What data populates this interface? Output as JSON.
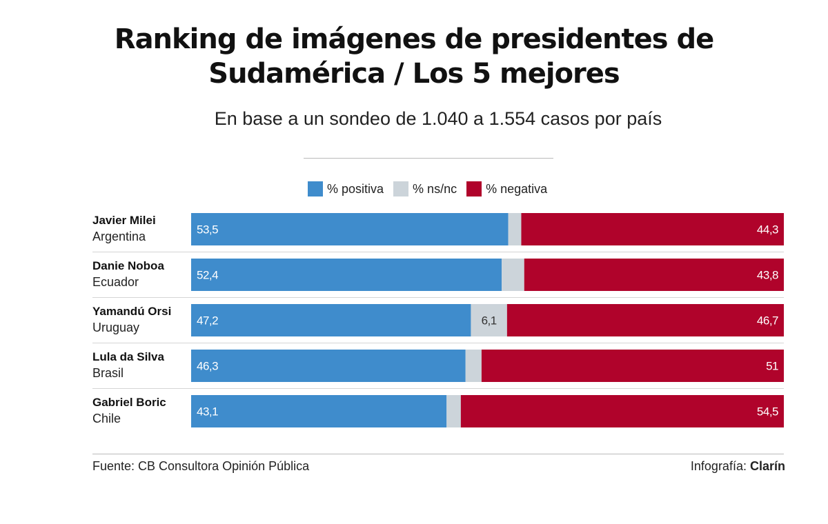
{
  "header": {
    "title_line1": "Ranking de imágenes de presidentes de",
    "title_line2": "Sudamérica / Los 5 mejores",
    "subtitle": "En base a un sondeo de 1.040 a 1.554 casos por país"
  },
  "legend": [
    {
      "label": "% positiva",
      "color": "#3f8ccc"
    },
    {
      "label": "% ns/nc",
      "color": "#ccd4da"
    },
    {
      "label": "% negativa",
      "color": "#b0032b"
    }
  ],
  "chart_data": {
    "type": "bar",
    "orientation": "horizontal",
    "stacked": true,
    "title": "Ranking de imágenes de presidentes de Sudamérica / Los 5 mejores",
    "subtitle": "En base a un sondeo de 1.040 a 1.554 casos por país",
    "categories": [
      {
        "name": "Javier Milei",
        "country": "Argentina"
      },
      {
        "name": "Danie Noboa",
        "country": "Ecuador"
      },
      {
        "name": "Yamandú Orsi",
        "country": "Uruguay"
      },
      {
        "name": "Lula da Silva",
        "country": "Brasil"
      },
      {
        "name": "Gabriel Boric",
        "country": "Chile"
      }
    ],
    "series": [
      {
        "name": "% positiva",
        "color": "#3f8ccc",
        "values": [
          53.5,
          52.4,
          47.2,
          46.3,
          43.1
        ],
        "labels": [
          "53,5",
          "52,4",
          "47,2",
          "46,3",
          "43,1"
        ]
      },
      {
        "name": "% ns/nc",
        "color": "#ccd4da",
        "values": [
          2.2,
          3.8,
          6.1,
          2.7,
          2.4
        ],
        "labels": [
          "",
          "",
          "6,1",
          "",
          ""
        ]
      },
      {
        "name": "% negativa",
        "color": "#b0032b",
        "values": [
          44.3,
          43.8,
          46.7,
          51,
          54.5
        ],
        "labels": [
          "44,3",
          "43,8",
          "46,7",
          "51",
          "54,5"
        ]
      }
    ],
    "xlim": [
      0,
      100
    ],
    "legend_position": "top-center"
  },
  "footer": {
    "source": "Fuente: CB Consultora Opinión Pública",
    "credit_prefix": "Infografía:",
    "credit_brand": "Clarín"
  }
}
